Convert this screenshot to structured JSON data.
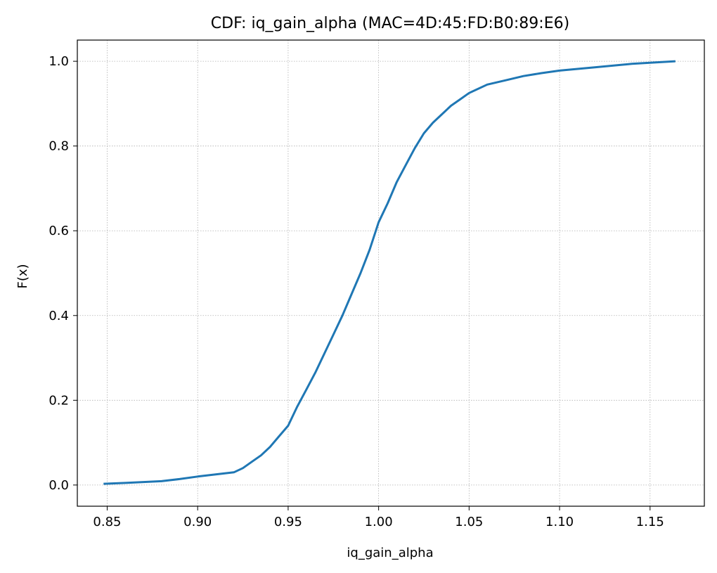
{
  "chart_data": {
    "type": "line",
    "title": "CDF: iq_gain_alpha (MAC=4D:45:FD:B0:89:E6)",
    "xlabel": "iq_gain_alpha",
    "ylabel": "F(x)",
    "xlim": [
      0.8335,
      1.18
    ],
    "ylim": [
      -0.05,
      1.05
    ],
    "xticks": [
      0.85,
      0.9,
      0.95,
      1.0,
      1.05,
      1.1,
      1.15
    ],
    "xtick_labels": [
      "0.85",
      "0.90",
      "0.95",
      "1.00",
      "1.05",
      "1.10",
      "1.15"
    ],
    "yticks": [
      0.0,
      0.2,
      0.4,
      0.6,
      0.8,
      1.0
    ],
    "ytick_labels": [
      "0.0",
      "0.2",
      "0.4",
      "0.6",
      "0.8",
      "1.0"
    ],
    "grid": true,
    "series": [
      {
        "color": "#1f77b4",
        "x": [
          0.848,
          0.86,
          0.87,
          0.88,
          0.89,
          0.9,
          0.91,
          0.92,
          0.925,
          0.93,
          0.935,
          0.94,
          0.945,
          0.95,
          0.955,
          0.96,
          0.965,
          0.97,
          0.975,
          0.98,
          0.985,
          0.99,
          0.995,
          1.0,
          1.005,
          1.01,
          1.015,
          1.02,
          1.025,
          1.03,
          1.035,
          1.04,
          1.045,
          1.05,
          1.06,
          1.07,
          1.08,
          1.09,
          1.1,
          1.12,
          1.14,
          1.164
        ],
        "y": [
          0.003,
          0.005,
          0.007,
          0.009,
          0.014,
          0.02,
          0.025,
          0.03,
          0.04,
          0.055,
          0.07,
          0.09,
          0.115,
          0.14,
          0.185,
          0.225,
          0.265,
          0.31,
          0.355,
          0.4,
          0.45,
          0.5,
          0.555,
          0.62,
          0.665,
          0.715,
          0.755,
          0.795,
          0.83,
          0.855,
          0.875,
          0.895,
          0.91,
          0.925,
          0.945,
          0.955,
          0.965,
          0.972,
          0.978,
          0.986,
          0.994,
          1.0
        ]
      }
    ]
  }
}
